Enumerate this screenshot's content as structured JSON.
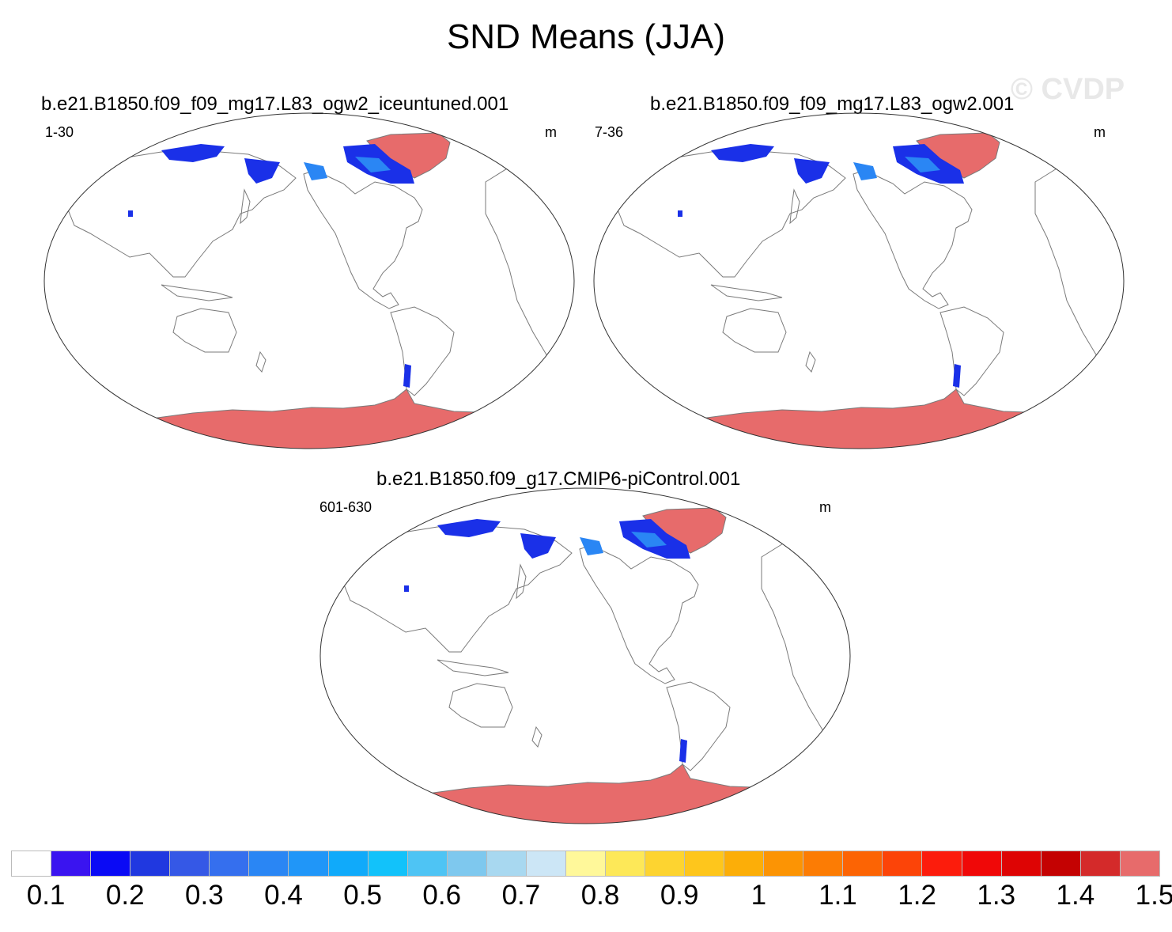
{
  "title": "SND Means (JJA)",
  "watermark": "© CVDP",
  "panels": [
    {
      "case": "b.e21.B1850.f09_f09_mg17.L83_ogw2_iceuntuned.001",
      "years": "1-30",
      "units": "m"
    },
    {
      "case": "b.e21.B1850.f09_f09_mg17.L83_ogw2.001",
      "years": "7-36",
      "units": "m"
    },
    {
      "case": "b.e21.B1850.f09_g17.CMIP6-piControl.001",
      "years": "601-630",
      "units": "m"
    }
  ],
  "colorbar": {
    "colors": [
      "#ffffff",
      "#3a14f0",
      "#0a0af5",
      "#2038e0",
      "#3558e6",
      "#356fee",
      "#2a86f4",
      "#2096f8",
      "#10aafa",
      "#12c2fa",
      "#4ec4f4",
      "#7ec8ee",
      "#a8d8f0",
      "#cce6f6",
      "#fff89a",
      "#fde858",
      "#fdd430",
      "#fec61c",
      "#fcae08",
      "#fc9404",
      "#fc7c04",
      "#fc6404",
      "#fc4408",
      "#fc1c0c",
      "#f00808",
      "#de0404",
      "#c40202",
      "#d42a2a",
      "#e76b6b"
    ],
    "labels": [
      "0.1",
      "0.2",
      "0.3",
      "0.4",
      "0.5",
      "0.6",
      "0.7",
      "0.8",
      "0.9",
      "1",
      "1.1",
      "1.2",
      "1.3",
      "1.4",
      "1.5"
    ]
  },
  "legend_colors": {
    "snow_low": "#1a30e8",
    "snow_mid": "#2a86f4",
    "snow_max": "#e76b6b",
    "coast": "#7a7a7a"
  }
}
